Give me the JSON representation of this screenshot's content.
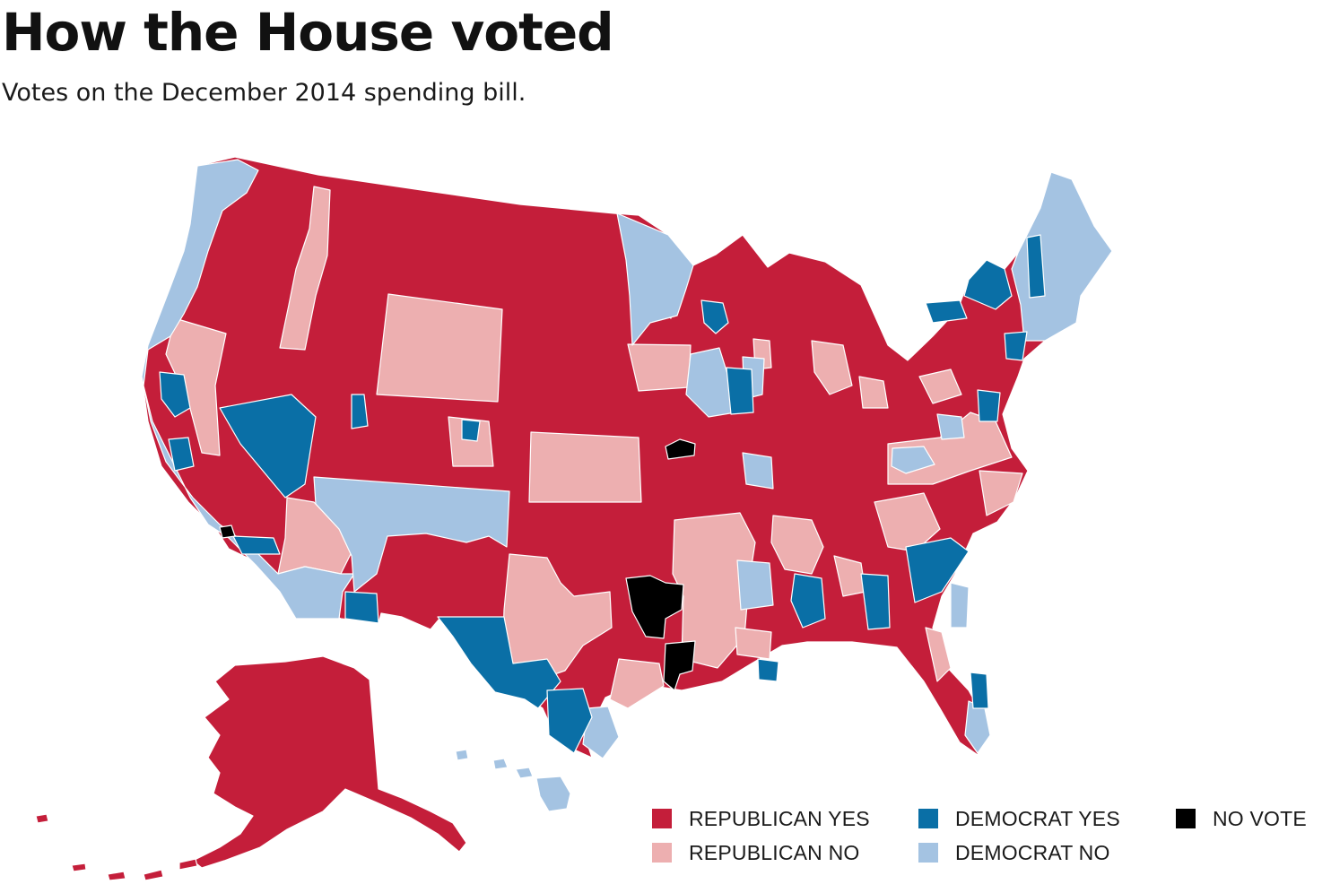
{
  "title": "How the House voted",
  "subtitle": "Votes on the December 2014 spending bill.",
  "colors": {
    "republican_yes": "#c41e3a",
    "republican_no": "#edafb0",
    "democrat_yes": "#0a6fa6",
    "democrat_no": "#a4c3e2",
    "no_vote": "#000000",
    "border": "#ffffff"
  },
  "legend": [
    {
      "key": "republican_yes",
      "label": "REPUBLICAN YES",
      "color": "#c41e3a"
    },
    {
      "key": "republican_no",
      "label": "REPUBLICAN NO",
      "color": "#edafb0"
    },
    {
      "key": "democrat_yes",
      "label": "DEMOCRAT YES",
      "color": "#0a6fa6"
    },
    {
      "key": "democrat_no",
      "label": "DEMOCRAT NO",
      "color": "#a4c3e2"
    },
    {
      "key": "no_vote",
      "label": "NO VOTE",
      "color": "#000000"
    }
  ]
}
